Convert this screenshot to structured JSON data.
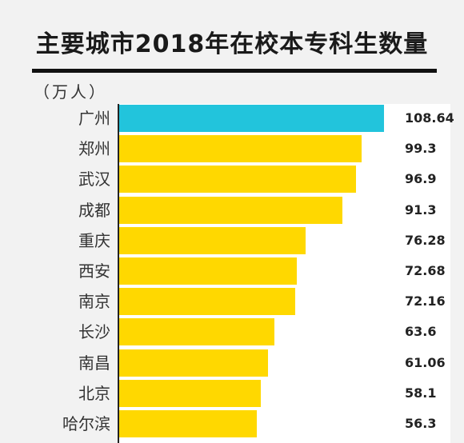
{
  "chart_data": {
    "type": "bar",
    "orientation": "horizontal",
    "title": "主要城市2018年在校本专科生数量",
    "unit_label": "（万人）",
    "categories": [
      "广州",
      "郑州",
      "武汉",
      "成都",
      "重庆",
      "西安",
      "南京",
      "长沙",
      "南昌",
      "北京",
      "哈尔滨"
    ],
    "values": [
      108.64,
      99.3,
      96.9,
      91.3,
      76.28,
      72.68,
      72.16,
      63.6,
      61.06,
      58.1,
      56.3
    ],
    "value_labels": [
      "108.64",
      "99.3",
      "96.9",
      "91.3",
      "76.28",
      "72.68",
      "72.16",
      "63.6",
      "61.06",
      "58.1",
      "56.3"
    ],
    "xlim": [
      0,
      118
    ],
    "grid": false,
    "colors": {
      "highlight": "#22c4dc",
      "default": "#ffd800"
    }
  }
}
